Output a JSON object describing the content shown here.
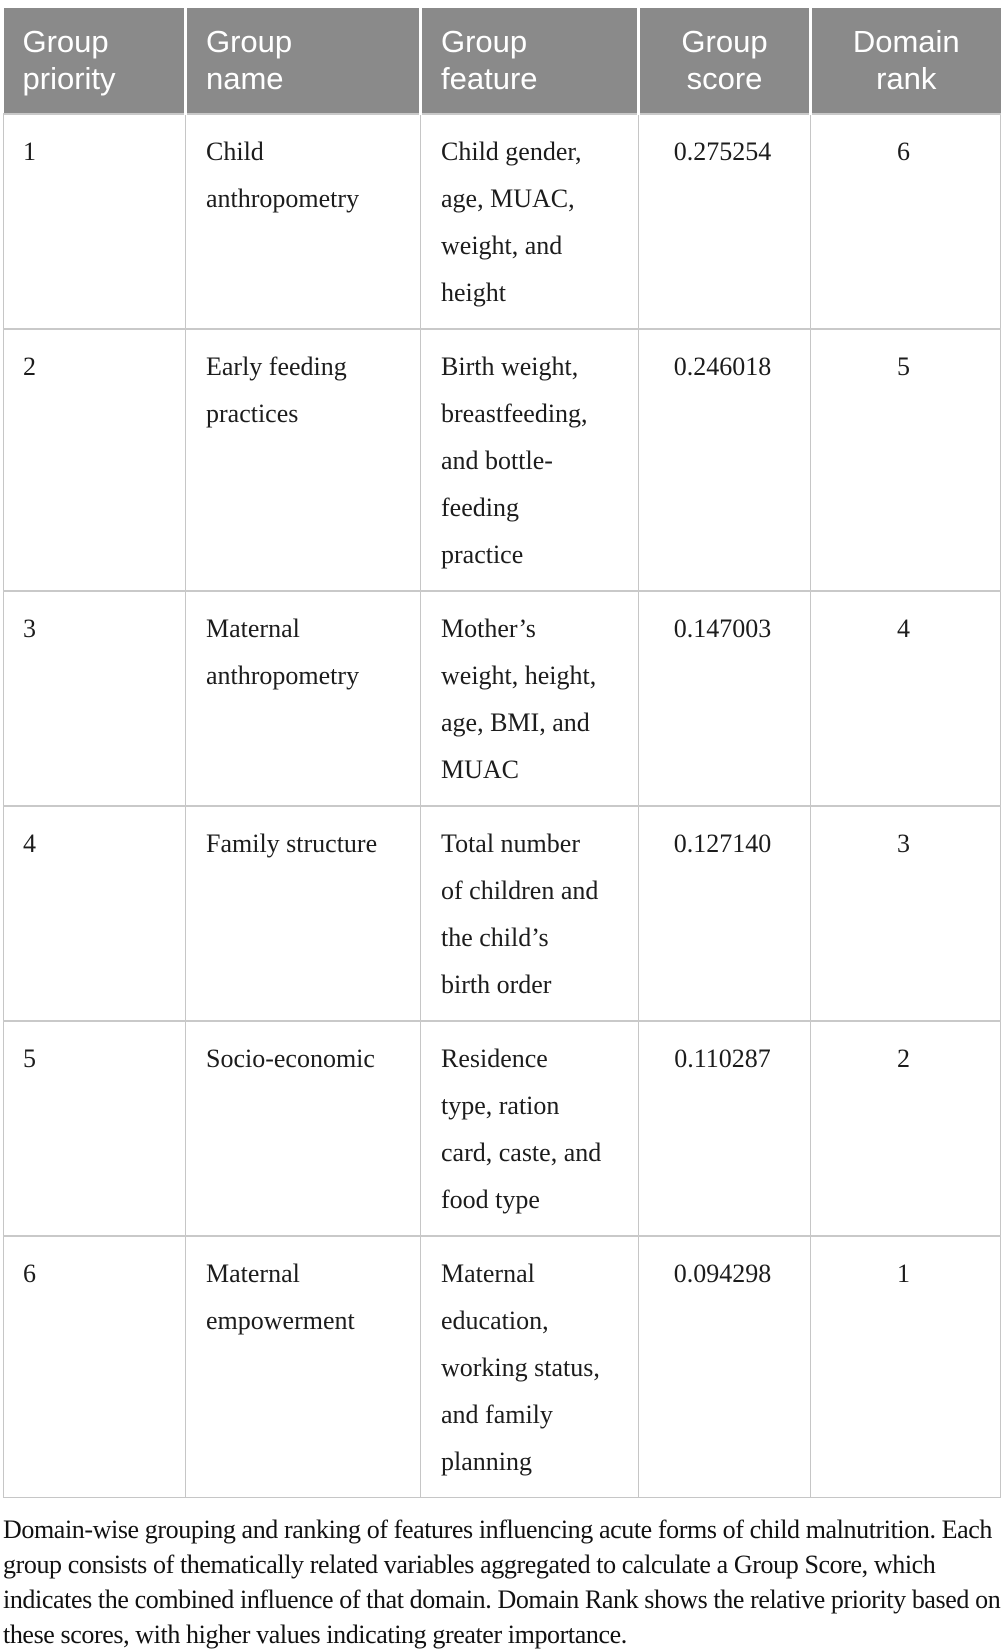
{
  "table": {
    "headers": [
      "Group\npriority",
      "Group\nname",
      "Group\nfeature",
      "Group\nscore",
      "Domain\nrank"
    ],
    "rows": [
      {
        "priority": "1",
        "name": "Child\nanthropometry",
        "feature": "Child gender,\nage, MUAC,\nweight, and\nheight",
        "score": "0.275254",
        "rank": "6"
      },
      {
        "priority": "2",
        "name": "Early feeding\npractices",
        "feature": "Birth weight,\nbreastfeeding,\nand bottle-\nfeeding\npractice",
        "score": "0.246018",
        "rank": "5"
      },
      {
        "priority": "3",
        "name": "Maternal\nanthropometry",
        "feature": "Mother’s\nweight, height,\nage, BMI, and\nMUAC",
        "score": "0.147003",
        "rank": "4"
      },
      {
        "priority": "4",
        "name": "Family structure",
        "feature": "Total number\nof children and\nthe child’s\nbirth order",
        "score": "0.127140",
        "rank": "3"
      },
      {
        "priority": "5",
        "name": "Socio-economic",
        "feature": "Residence\ntype, ration\ncard, caste, and\nfood type",
        "score": "0.110287",
        "rank": "2"
      },
      {
        "priority": "6",
        "name": "Maternal\nempowerment",
        "feature": "Maternal\neducation,\nworking status,\nand family\nplanning",
        "score": "0.094298",
        "rank": "1"
      }
    ]
  },
  "caption": "Domain-wise grouping and ranking of features influencing acute forms of child malnutrition. Each group consists of thematically related variables aggregated to calculate a Group Score, which indicates the combined influence of that domain. Domain Rank shows the relative priority based on these scores, with higher values indicating greater importance.",
  "colors": {
    "header_bg": "#8a8a8a",
    "header_text": "#ffffff",
    "border": "#c6c6c6",
    "body_text": "#1c1c1c"
  }
}
